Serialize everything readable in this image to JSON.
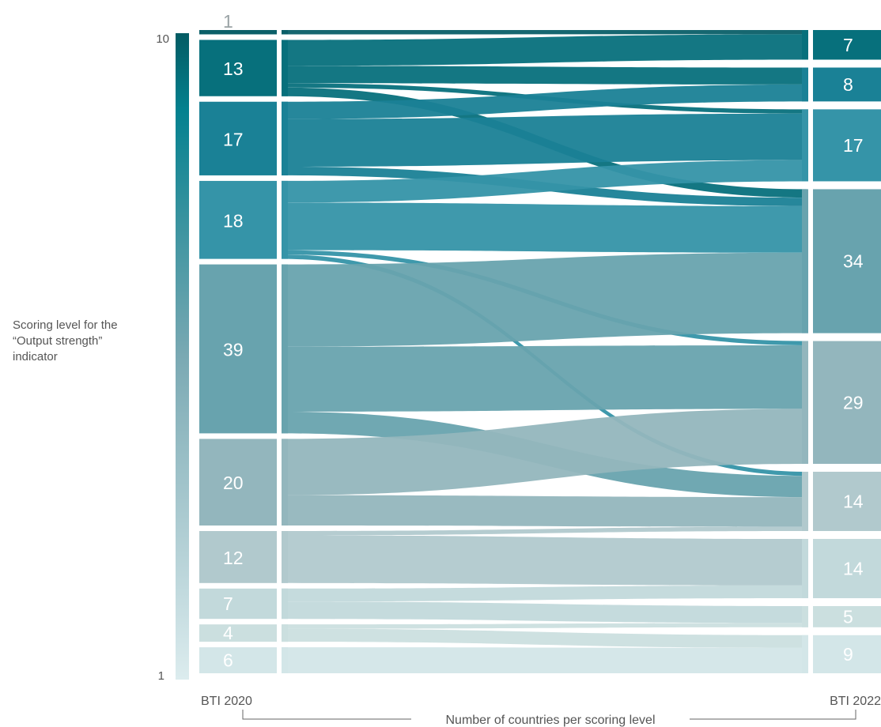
{
  "chart_data": {
    "type": "sankey",
    "title": "",
    "ylabel_lines": [
      "Scoring level for the",
      "“Output strength”",
      "indicator"
    ],
    "xlabel": "Number of countries per scoring level",
    "scale_top_label": "10",
    "scale_bottom_label": "1",
    "left_column_label": "BTI 2020",
    "right_column_label": "BTI 2022",
    "left_nodes": [
      {
        "id": "L0",
        "value": 1,
        "color": "#0a5f68"
      },
      {
        "id": "L1",
        "value": 13,
        "color": "#07707c"
      },
      {
        "id": "L2",
        "value": 17,
        "color": "#1a8196"
      },
      {
        "id": "L3",
        "value": 18,
        "color": "#3594a8"
      },
      {
        "id": "L4",
        "value": 39,
        "color": "#68a3ae"
      },
      {
        "id": "L5",
        "value": 20,
        "color": "#93b6bd"
      },
      {
        "id": "L6",
        "value": 12,
        "color": "#b1c9cd"
      },
      {
        "id": "L7",
        "value": 7,
        "color": "#c2d9db"
      },
      {
        "id": "L8",
        "value": 4,
        "color": "#cbdfdf"
      },
      {
        "id": "L9",
        "value": 6,
        "color": "#d3e6e8"
      }
    ],
    "right_nodes": [
      {
        "id": "R0",
        "value": 7,
        "color": "#07707c"
      },
      {
        "id": "R1",
        "value": 8,
        "color": "#1a8196"
      },
      {
        "id": "R2",
        "value": 17,
        "color": "#3594a8"
      },
      {
        "id": "R3",
        "value": 34,
        "color": "#68a3ae"
      },
      {
        "id": "R4",
        "value": 29,
        "color": "#93b6bd"
      },
      {
        "id": "R5",
        "value": 14,
        "color": "#b1c9cd"
      },
      {
        "id": "R6",
        "value": 14,
        "color": "#c2d9db"
      },
      {
        "id": "R7",
        "value": 5,
        "color": "#cbdfdf"
      },
      {
        "id": "R8",
        "value": 9,
        "color": "#d3e6e8"
      }
    ],
    "flows": [
      {
        "source": "L0",
        "target": "R0",
        "value": 1
      },
      {
        "source": "L1",
        "target": "R0",
        "value": 6
      },
      {
        "source": "L1",
        "target": "R1",
        "value": 4
      },
      {
        "source": "L1",
        "target": "R2",
        "value": 1
      },
      {
        "source": "L1",
        "target": "R3",
        "value": 2
      },
      {
        "source": "L2",
        "target": "R1",
        "value": 4
      },
      {
        "source": "L2",
        "target": "R2",
        "value": 11
      },
      {
        "source": "L2",
        "target": "R3",
        "value": 2
      },
      {
        "source": "L3",
        "target": "R2",
        "value": 5
      },
      {
        "source": "L3",
        "target": "R3",
        "value": 11
      },
      {
        "source": "L3",
        "target": "R4",
        "value": 1
      },
      {
        "source": "L3",
        "target": "R5",
        "value": 1
      },
      {
        "source": "L4",
        "target": "R3",
        "value": 19
      },
      {
        "source": "L4",
        "target": "R4",
        "value": 15
      },
      {
        "source": "L4",
        "target": "R5",
        "value": 5
      },
      {
        "source": "L5",
        "target": "R4",
        "value": 13
      },
      {
        "source": "L5",
        "target": "R5",
        "value": 7
      },
      {
        "source": "L6",
        "target": "R5",
        "value": 1
      },
      {
        "source": "L6",
        "target": "R6",
        "value": 11
      },
      {
        "source": "L7",
        "target": "R6",
        "value": 3
      },
      {
        "source": "L7",
        "target": "R7",
        "value": 4
      },
      {
        "source": "L8",
        "target": "R7",
        "value": 1
      },
      {
        "source": "L8",
        "target": "R8",
        "value": 3
      },
      {
        "source": "L9",
        "target": "R8",
        "value": 6
      }
    ]
  }
}
